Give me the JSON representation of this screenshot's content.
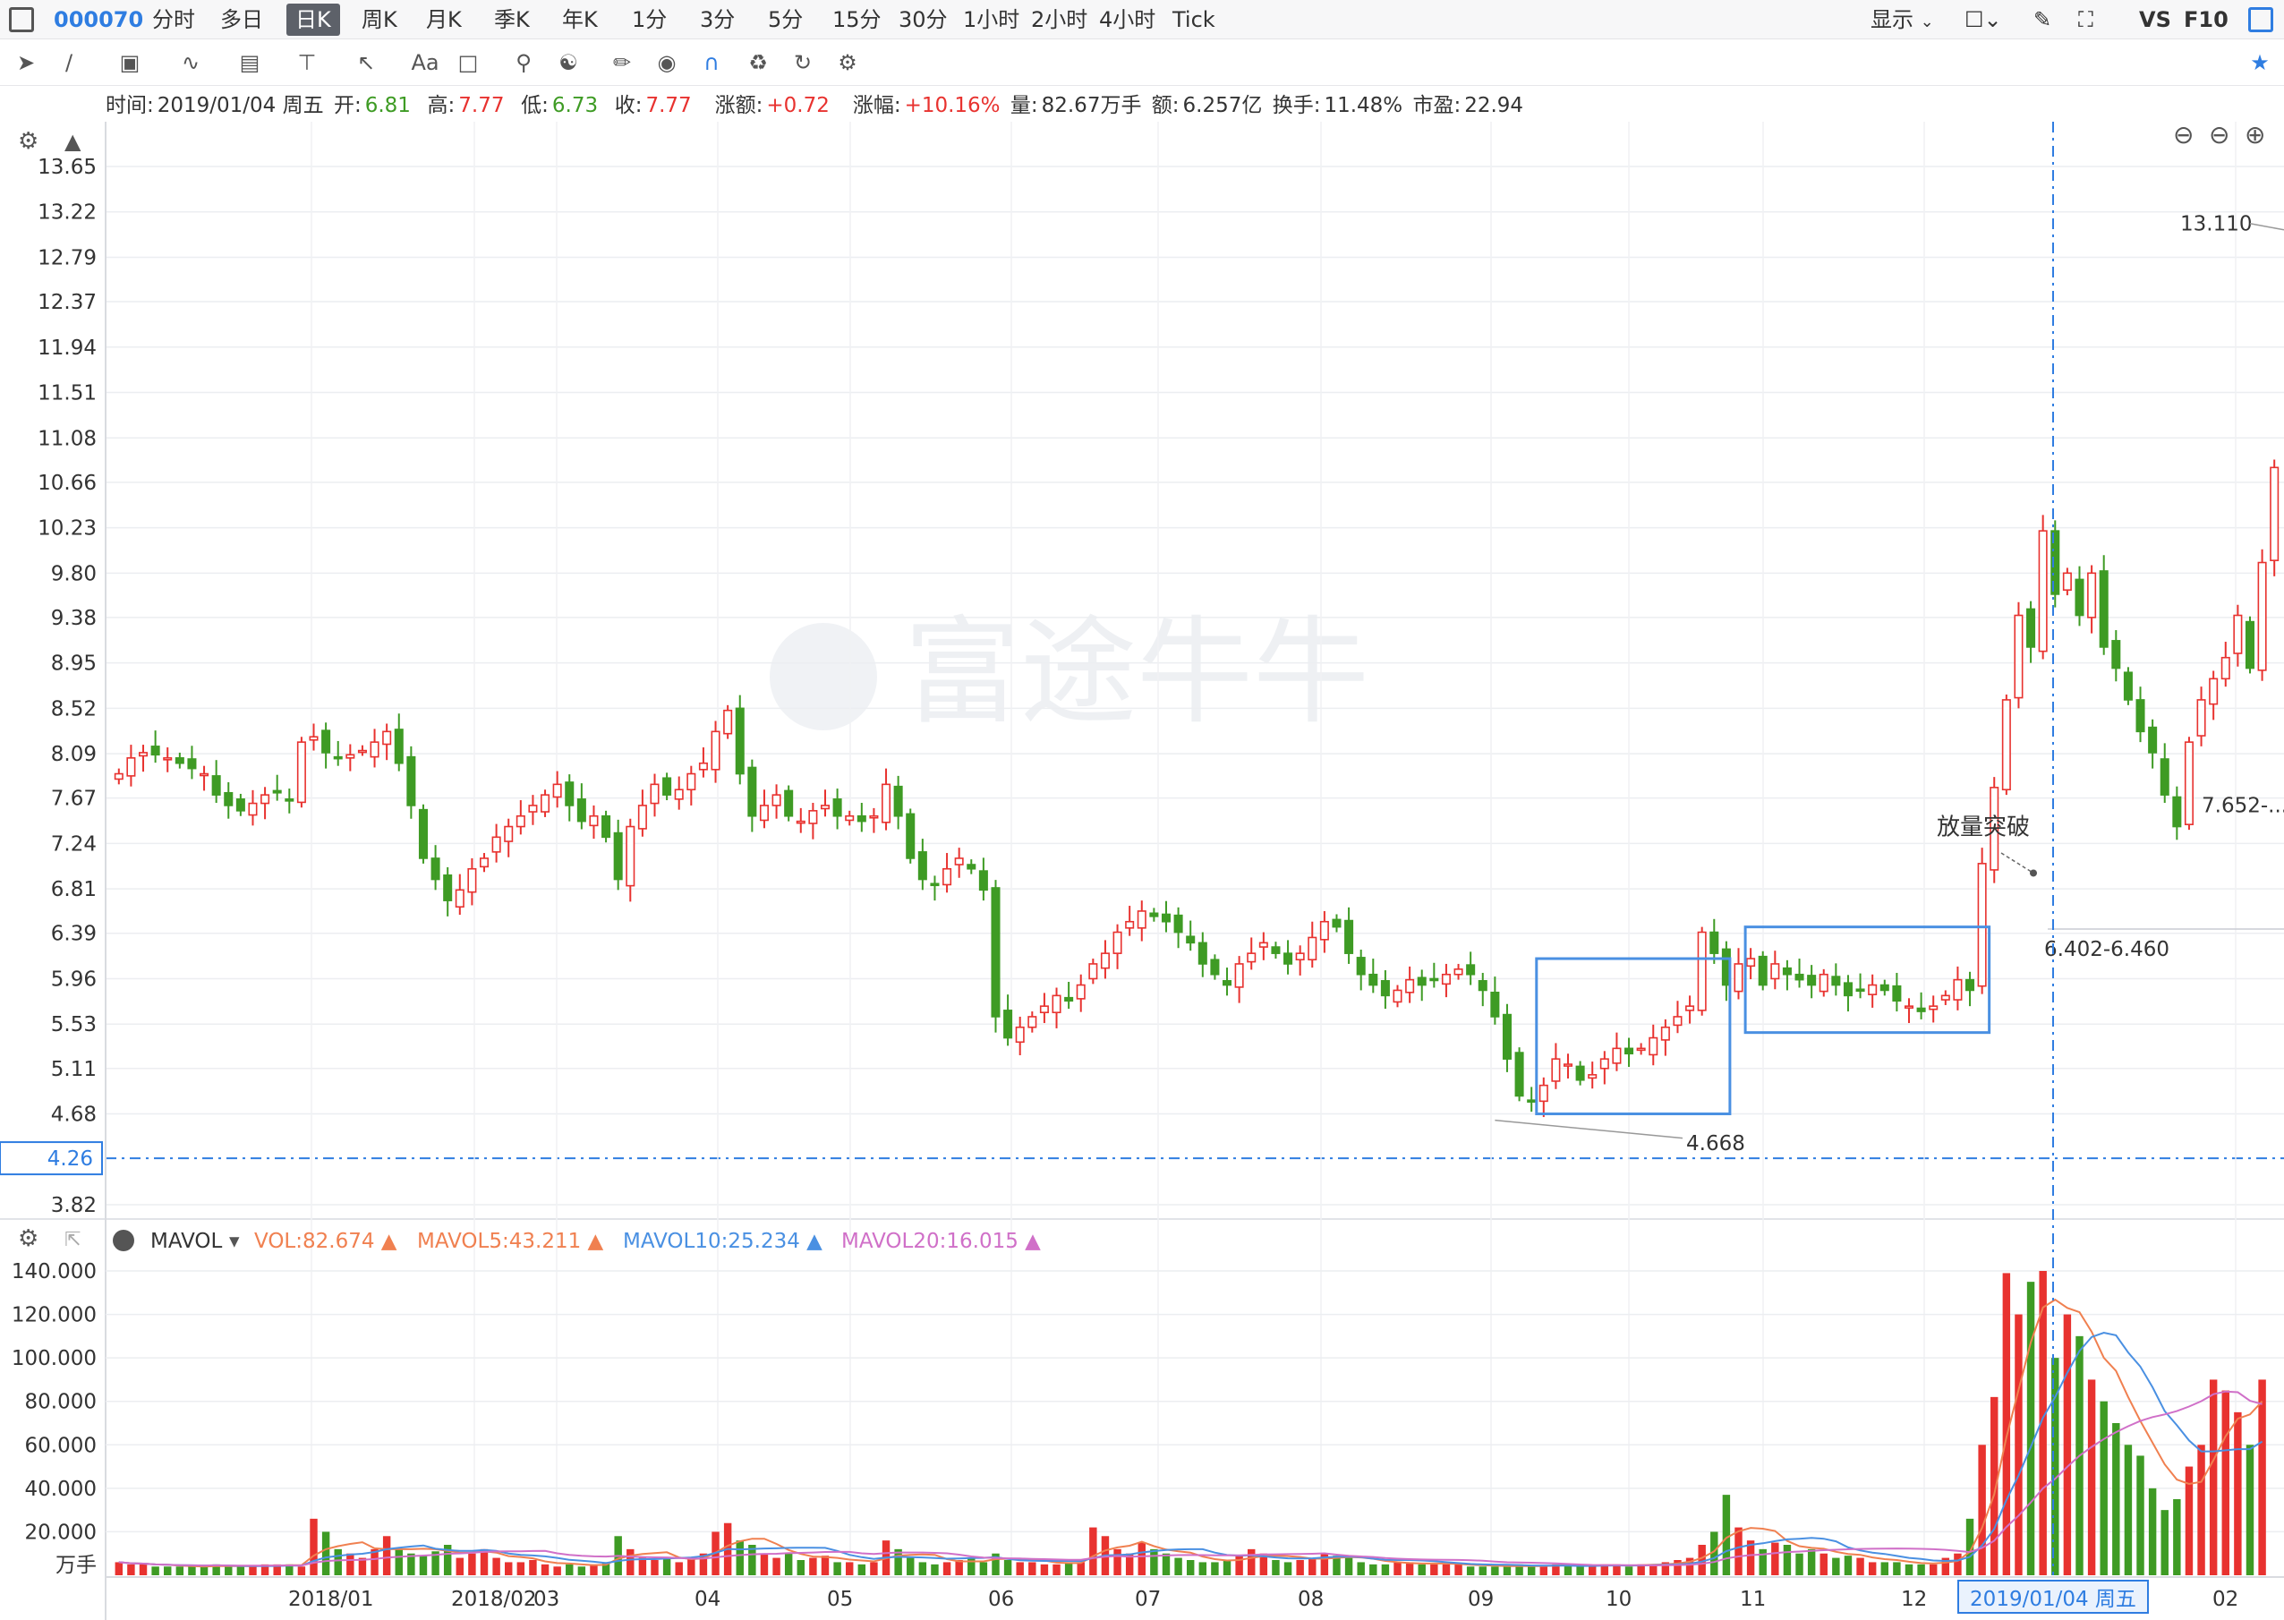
{
  "topbar": {
    "code": "000070",
    "periods": [
      "分时",
      "多日",
      "日K",
      "周K",
      "月K",
      "季K",
      "年K",
      "1分",
      "3分",
      "5分",
      "15分",
      "30分",
      "1小时",
      "2小时",
      "4小时",
      "Tick"
    ],
    "active_period": "日K",
    "display_label": "显示",
    "vs_label": "VS",
    "f10_label": "F10"
  },
  "toolbar": {
    "font_tool_label": "Aa",
    "icons": [
      "cursor-icon",
      "line-tool-icon",
      "rect-tool-icon",
      "wave-tool-icon",
      "fib-tool-icon",
      "level-tool-icon",
      "arrow-tool-icon",
      "text-tool-icon",
      "comment-icon",
      "zoom-icon",
      "indicator-icon",
      "pen-icon",
      "eye-icon",
      "magnet-icon",
      "trash-icon",
      "sync-icon",
      "settings-icon",
      "pin-icon"
    ]
  },
  "infobar": {
    "time_label": "时间:",
    "time_value": "2019/01/04 周五",
    "open_label": "开:",
    "open_value": "6.81",
    "high_label": "高:",
    "high_value": "7.77",
    "low_label": "低:",
    "low_value": "6.73",
    "close_label": "收:",
    "close_value": "7.77",
    "change_label": "涨额:",
    "change_value": "+0.72",
    "pct_label": "涨幅:",
    "pct_value": "+10.16%",
    "vol_label": "量:",
    "vol_value": "82.67万手",
    "amount_label": "额:",
    "amount_value": "6.257亿",
    "turnover_label": "换手:",
    "turnover_value": "11.48%",
    "pe_label": "市盈:",
    "pe_value": "22.94"
  },
  "watermark": "富途牛牛",
  "colors": {
    "up": "#e8322f",
    "down": "#3e9b24",
    "crosshair": "#2f7de1",
    "box": "#4a90e2",
    "ma5": "#f08050",
    "ma10": "#4a90e2",
    "ma20": "#d070c8",
    "vol_label": "#f08050"
  },
  "chart_data": {
    "type": "candlestick",
    "price_axis": {
      "ticks": [
        "13.65",
        "13.22",
        "12.79",
        "12.37",
        "11.94",
        "11.51",
        "11.08",
        "10.66",
        "10.23",
        "9.80",
        "9.38",
        "8.95",
        "8.52",
        "8.09",
        "7.67",
        "7.24",
        "6.81",
        "6.39",
        "5.96",
        "5.53",
        "5.11",
        "4.68",
        "3.82"
      ],
      "range": [
        3.82,
        13.65
      ],
      "current_marker": "4.26"
    },
    "time_axis": [
      "2018/01",
      "2018/02",
      "03",
      "04",
      "05",
      "06",
      "07",
      "08",
      "09",
      "10",
      "11",
      "12",
      "02"
    ],
    "crosshair_date": "2019/01/04 周五",
    "closes": [
      7.9,
      8.05,
      8.1,
      8.08,
      8.05,
      8.0,
      7.95,
      7.9,
      7.7,
      7.6,
      7.55,
      7.62,
      7.7,
      7.72,
      7.65,
      8.2,
      8.25,
      8.1,
      8.05,
      8.08,
      8.12,
      8.2,
      8.3,
      8.0,
      7.6,
      7.1,
      6.9,
      6.7,
      6.8,
      7.0,
      7.1,
      7.3,
      7.4,
      7.5,
      7.6,
      7.7,
      7.8,
      7.6,
      7.45,
      7.5,
      7.3,
      6.9,
      7.4,
      7.6,
      7.8,
      7.7,
      7.75,
      7.9,
      8.0,
      8.3,
      8.5,
      7.9,
      7.5,
      7.6,
      7.7,
      7.5,
      7.45,
      7.55,
      7.6,
      7.5,
      7.5,
      7.45,
      7.5,
      7.8,
      7.5,
      7.1,
      6.9,
      6.85,
      7.0,
      7.1,
      7.0,
      6.8,
      5.6,
      5.4,
      5.5,
      5.6,
      5.7,
      5.8,
      5.75,
      5.9,
      6.1,
      6.2,
      6.4,
      6.5,
      6.6,
      6.55,
      6.5,
      6.4,
      6.3,
      6.1,
      6.0,
      5.9,
      6.1,
      6.2,
      6.3,
      6.2,
      6.1,
      6.2,
      6.35,
      6.5,
      6.45,
      6.2,
      6.0,
      5.9,
      5.8,
      5.85,
      5.95,
      5.9,
      5.95,
      6.0,
      6.05,
      6.0,
      5.85,
      5.6,
      5.2,
      4.85,
      4.8,
      4.95,
      5.2,
      5.15,
      5.0,
      5.05,
      5.2,
      5.3,
      5.25,
      5.3,
      5.4,
      5.5,
      5.6,
      5.7,
      6.4,
      6.2,
      5.9,
      6.1,
      6.15,
      5.9,
      6.1,
      6.0,
      5.95,
      5.9,
      6.0,
      5.9,
      5.8,
      5.85,
      5.9,
      5.85,
      5.75,
      5.7,
      5.65,
      5.7,
      5.8,
      5.95,
      5.85,
      7.05,
      7.77,
      8.6,
      9.4,
      9.1,
      10.2,
      9.6,
      9.8,
      9.4,
      9.8,
      9.1,
      8.9,
      8.6,
      8.3,
      8.1,
      7.7,
      7.4,
      8.2,
      8.6,
      8.8,
      9.0,
      9.4,
      8.9,
      9.9,
      10.8
    ],
    "annotations": [
      {
        "label": "13.110",
        "type": "high"
      },
      {
        "label": "4.668",
        "type": "low"
      },
      {
        "label": "放量突破",
        "type": "note"
      },
      {
        "label": "6.402-6.460",
        "type": "range"
      },
      {
        "label": "7.652-...",
        "type": "range"
      }
    ],
    "volume": {
      "indicator": "MAVOL",
      "vol_label": "VOL:82.674",
      "ma5_label": "MAVOL5:43.211",
      "ma10_label": "MAVOL10:25.234",
      "ma20_label": "MAVOL20:16.015",
      "axis_ticks": [
        "140.000",
        "120.000",
        "100.000",
        "80.000",
        "60.000",
        "40.000",
        "20.000"
      ],
      "unit": "万手",
      "range": [
        0,
        140
      ],
      "values": [
        6,
        5,
        5,
        4,
        4,
        4,
        4,
        4,
        5,
        4,
        4,
        4,
        5,
        5,
        5,
        4,
        26,
        20,
        12,
        10,
        8,
        12,
        18,
        12,
        10,
        9,
        11,
        14,
        8,
        10,
        12,
        8,
        6,
        6,
        7,
        5,
        4,
        5,
        4,
        5,
        6,
        18,
        12,
        8,
        7,
        8,
        6,
        8,
        10,
        20,
        24,
        16,
        14,
        10,
        8,
        10,
        7,
        8,
        9,
        6,
        6,
        5,
        6,
        16,
        12,
        8,
        6,
        5,
        6,
        7,
        8,
        6,
        10,
        7,
        6,
        6,
        5,
        5,
        6,
        6,
        22,
        18,
        12,
        10,
        15,
        12,
        10,
        8,
        7,
        6,
        6,
        7,
        9,
        12,
        10,
        7,
        6,
        7,
        8,
        10,
        9,
        8,
        6,
        5,
        5,
        6,
        6,
        5,
        5,
        5,
        5,
        4,
        4,
        4,
        4,
        5,
        4,
        4,
        5,
        5,
        4,
        4,
        5,
        5,
        4,
        5,
        5,
        6,
        7,
        8,
        14,
        20,
        37,
        22,
        16,
        12,
        15,
        14,
        10,
        12,
        10,
        8,
        9,
        8,
        6,
        6,
        6,
        5,
        5,
        5,
        8,
        10,
        26,
        60,
        82,
        139,
        120,
        135,
        140,
        100,
        120,
        110,
        90,
        80,
        70,
        60,
        55,
        40,
        30,
        35,
        50,
        60,
        90,
        85,
        75,
        60,
        90
      ]
    }
  }
}
